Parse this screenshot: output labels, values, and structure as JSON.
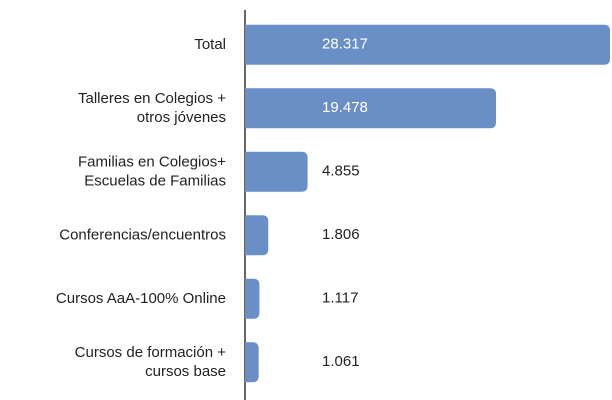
{
  "chart_data": {
    "type": "barh",
    "categories": [
      "Total",
      "Talleres en Colegios +\notros jóvenes",
      "Familias en Colegios+\nEscuelas de Familias",
      "Conferencias/encuentros",
      "Cursos AaA-100% Online",
      "Cursos de formación +\ncursos base"
    ],
    "values": [
      28317,
      19478,
      4855,
      1806,
      1117,
      1061
    ],
    "value_labels": [
      "28.317",
      "19.478",
      "4.855",
      "1.806",
      "1.117",
      "1.061"
    ],
    "color": "#6a8fc7"
  }
}
